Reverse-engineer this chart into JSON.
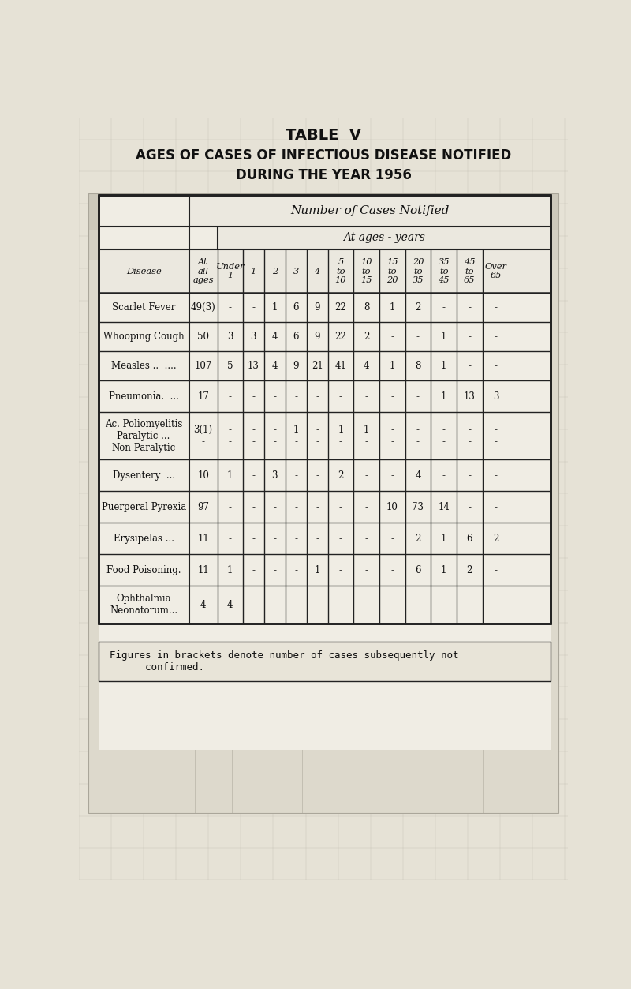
{
  "title1": "TABLE  V",
  "title2": "AGES OF CASES OF INFECTIOUS DISEASE NOTIFIED",
  "title3": "DURING THE YEAR 1956",
  "footnote_line1": "Figures in brackets denote number of cases subsequently not",
  "footnote_line2": "      confirmed.",
  "col_header_main": "Number of Cases Notified",
  "col_header_sub": "At ages - years",
  "col_headers_row": [
    "Disease",
    "At\nall\nages",
    "Under\n1",
    "1",
    "2",
    "3",
    "4",
    "5\nto\n10",
    "10\nto\n15",
    "15\nto\n20",
    "20\nto\n35",
    "35\nto\n45",
    "45\nto\n65",
    "Over\n65"
  ],
  "rows": [
    {
      "disease": "Scarlet Fever",
      "all": "49(3)",
      "vals": [
        "-",
        "-",
        "1",
        "6",
        "9",
        "22",
        "8",
        "1",
        "2",
        "-",
        "-",
        "-"
      ]
    },
    {
      "disease": "Whooping Cough",
      "all": "50",
      "vals": [
        "3",
        "3",
        "4",
        "6",
        "9",
        "22",
        "2",
        "-",
        "-",
        "1",
        "-",
        "-"
      ]
    },
    {
      "disease": "Measles ..  ....",
      "all": "107",
      "vals": [
        "5",
        "13",
        "4",
        "9",
        "21",
        "41",
        "4",
        "1",
        "8",
        "1",
        "-",
        "-"
      ]
    },
    {
      "disease": "Pneumonia.  ...",
      "all": "17",
      "vals": [
        "-",
        "-",
        "-",
        "-",
        "-",
        "-",
        "-",
        "-",
        "-",
        "1",
        "13",
        "3"
      ]
    },
    {
      "disease": "Ac. Poliomyelitis\nParalytic ...\nNon-Paralytic",
      "all": "3(1)\n-",
      "vals": [
        "-\n-",
        "-\n-",
        "-\n-",
        "1\n-",
        "-\n-",
        "1\n-",
        "1\n-",
        "-\n-",
        "-\n-",
        "-\n-",
        "-\n-",
        "-\n-"
      ]
    },
    {
      "disease": "Dysentery  ...",
      "all": "10",
      "vals": [
        "1",
        "-",
        "3",
        "-",
        "-",
        "2",
        "-",
        "-",
        "4",
        "-",
        "-",
        "-"
      ]
    },
    {
      "disease": "Puerperal Pyrexia",
      "all": "97",
      "vals": [
        "-",
        "-",
        "-",
        "-",
        "-",
        "-",
        "-",
        "10",
        "73",
        "14",
        "-",
        "-"
      ]
    },
    {
      "disease": "Erysipelas ...",
      "all": "11",
      "vals": [
        "-",
        "-",
        "-",
        "-",
        "-",
        "-",
        "-",
        "-",
        "2",
        "1",
        "6",
        "2"
      ]
    },
    {
      "disease": "Food Poisoning.",
      "all": "11",
      "vals": [
        "1",
        "-",
        "-",
        "-",
        "1",
        "-",
        "-",
        "-",
        "6",
        "1",
        "2",
        "-"
      ]
    },
    {
      "disease": "Ophthalmia\nNeonatorum...",
      "all": "4",
      "vals": [
        "4",
        "-",
        "-",
        "-",
        "-",
        "-",
        "-",
        "-",
        "-",
        "-",
        "-",
        "-"
      ]
    }
  ],
  "bg_color": "#e6e2d6",
  "table_fill": "#f0ede4",
  "header_fill": "#ebe8df",
  "border_color": "#222222",
  "text_color": "#111111"
}
